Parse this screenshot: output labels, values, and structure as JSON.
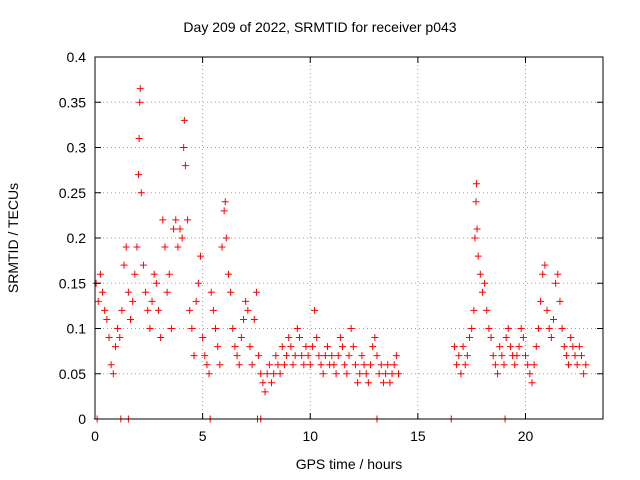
{
  "chart_data": {
    "type": "scatter",
    "title": "Day 209 of 2022, SRMTID for receiver p043",
    "xlabel": "GPS time / hours",
    "ylabel": "SRMTID / TECUs",
    "xlim": [
      0,
      23.6
    ],
    "ylim": [
      0,
      0.4
    ],
    "xticks": [
      0,
      5,
      10,
      15,
      20
    ],
    "xtick_labels": [
      "0",
      "5",
      "10",
      "15",
      "20"
    ],
    "yticks": [
      0,
      0.05,
      0.1,
      0.15,
      0.2,
      0.25,
      0.3,
      0.35,
      0.4
    ],
    "ytick_labels": [
      "0",
      "0.05",
      "0.1",
      "0.15",
      "0.2",
      "0.25",
      "0.3",
      "0.35",
      "0.4"
    ],
    "grid": true,
    "marker": "+",
    "color": "#ff0000",
    "series": [
      {
        "name": "SRMTID",
        "points": [
          [
            0.05,
            0.15
          ],
          [
            0.15,
            0.13
          ],
          [
            0.25,
            0.16
          ],
          [
            0.35,
            0.14
          ],
          [
            0.45,
            0.12
          ],
          [
            0.55,
            0.11
          ],
          [
            0.65,
            0.09
          ],
          [
            0.75,
            0.06
          ],
          [
            0.85,
            0.05
          ],
          [
            0.95,
            0.08
          ],
          [
            1.05,
            0.1
          ],
          [
            1.15,
            0.09
          ],
          [
            1.25,
            0.12
          ],
          [
            1.35,
            0.17
          ],
          [
            1.45,
            0.19
          ],
          [
            1.55,
            0.14
          ],
          [
            1.65,
            0.11
          ],
          [
            1.75,
            0.13
          ],
          [
            1.85,
            0.16
          ],
          [
            1.95,
            0.19
          ],
          [
            2.02,
            0.27
          ],
          [
            2.05,
            0.31
          ],
          [
            2.08,
            0.35
          ],
          [
            2.1,
            0.365
          ],
          [
            2.15,
            0.25
          ],
          [
            2.25,
            0.17
          ],
          [
            2.35,
            0.14
          ],
          [
            2.45,
            0.12
          ],
          [
            2.55,
            0.1
          ],
          [
            2.65,
            0.13
          ],
          [
            2.75,
            0.16
          ],
          [
            2.85,
            0.15
          ],
          [
            2.95,
            0.12
          ],
          [
            3.05,
            0.09
          ],
          [
            3.15,
            0.22
          ],
          [
            3.25,
            0.19
          ],
          [
            3.35,
            0.14
          ],
          [
            3.45,
            0.16
          ],
          [
            3.55,
            0.1
          ],
          [
            3.65,
            0.21
          ],
          [
            3.75,
            0.22
          ],
          [
            3.85,
            0.19
          ],
          [
            3.95,
            0.21
          ],
          [
            4.05,
            0.2
          ],
          [
            4.12,
            0.3
          ],
          [
            4.15,
            0.33
          ],
          [
            4.2,
            0.28
          ],
          [
            4.3,
            0.22
          ],
          [
            4.4,
            0.12
          ],
          [
            4.5,
            0.1
          ],
          [
            4.6,
            0.07
          ],
          [
            4.7,
            0.13
          ],
          [
            4.8,
            0.15
          ],
          [
            4.9,
            0.18
          ],
          [
            5.0,
            0.09
          ],
          [
            5.1,
            0.07
          ],
          [
            5.2,
            0.06
          ],
          [
            5.3,
            0.05
          ],
          [
            5.4,
            0.14
          ],
          [
            5.5,
            0.12
          ],
          [
            5.6,
            0.1
          ],
          [
            5.7,
            0.08
          ],
          [
            5.8,
            0.06
          ],
          [
            5.9,
            0.19
          ],
          [
            6.0,
            0.23
          ],
          [
            6.05,
            0.24
          ],
          [
            6.1,
            0.2
          ],
          [
            6.2,
            0.16
          ],
          [
            6.3,
            0.14
          ],
          [
            6.4,
            0.1
          ],
          [
            6.5,
            0.08
          ],
          [
            6.6,
            0.07
          ],
          [
            6.7,
            0.06
          ],
          [
            6.8,
            0.09
          ],
          [
            6.9,
            0.11
          ],
          [
            7.0,
            0.13
          ],
          [
            7.1,
            0.12
          ],
          [
            7.2,
            0.08
          ],
          [
            7.3,
            0.06
          ],
          [
            7.4,
            0.11
          ],
          [
            7.5,
            0.14
          ],
          [
            7.6,
            0.07
          ],
          [
            7.7,
            0.05
          ],
          [
            7.8,
            0.04
          ],
          [
            7.9,
            0.03
          ],
          [
            8.0,
            0.05
          ],
          [
            8.1,
            0.06
          ],
          [
            8.2,
            0.04
          ],
          [
            8.3,
            0.05
          ],
          [
            8.4,
            0.07
          ],
          [
            8.5,
            0.06
          ],
          [
            8.6,
            0.05
          ],
          [
            8.7,
            0.08
          ],
          [
            8.8,
            0.06
          ],
          [
            8.9,
            0.07
          ],
          [
            9.0,
            0.09
          ],
          [
            9.1,
            0.08
          ],
          [
            9.2,
            0.06
          ],
          [
            9.3,
            0.07
          ],
          [
            9.4,
            0.1
          ],
          [
            9.5,
            0.09
          ],
          [
            9.6,
            0.07
          ],
          [
            9.7,
            0.06
          ],
          [
            9.8,
            0.08
          ],
          [
            9.9,
            0.07
          ],
          [
            10.0,
            0.06
          ],
          [
            10.1,
            0.08
          ],
          [
            10.2,
            0.12
          ],
          [
            10.3,
            0.09
          ],
          [
            10.4,
            0.07
          ],
          [
            10.5,
            0.06
          ],
          [
            10.6,
            0.05
          ],
          [
            10.7,
            0.07
          ],
          [
            10.8,
            0.08
          ],
          [
            10.9,
            0.06
          ],
          [
            11.0,
            0.07
          ],
          [
            11.1,
            0.06
          ],
          [
            11.2,
            0.05
          ],
          [
            11.3,
            0.07
          ],
          [
            11.4,
            0.09
          ],
          [
            11.5,
            0.08
          ],
          [
            11.6,
            0.06
          ],
          [
            11.7,
            0.05
          ],
          [
            11.8,
            0.07
          ],
          [
            11.9,
            0.1
          ],
          [
            12.0,
            0.08
          ],
          [
            12.1,
            0.06
          ],
          [
            12.2,
            0.04
          ],
          [
            12.3,
            0.05
          ],
          [
            12.4,
            0.07
          ],
          [
            12.5,
            0.06
          ],
          [
            12.6,
            0.05
          ],
          [
            12.7,
            0.04
          ],
          [
            12.8,
            0.06
          ],
          [
            12.9,
            0.08
          ],
          [
            13.0,
            0.09
          ],
          [
            13.1,
            0.07
          ],
          [
            13.2,
            0.05
          ],
          [
            13.3,
            0.06
          ],
          [
            13.4,
            0.04
          ],
          [
            13.5,
            0.05
          ],
          [
            13.6,
            0.06
          ],
          [
            13.7,
            0.04
          ],
          [
            13.8,
            0.05
          ],
          [
            13.9,
            0.06
          ],
          [
            14.0,
            0.07
          ],
          [
            14.1,
            0.05
          ],
          [
            16.7,
            0.08
          ],
          [
            16.8,
            0.06
          ],
          [
            16.9,
            0.07
          ],
          [
            17.0,
            0.05
          ],
          [
            17.1,
            0.08
          ],
          [
            17.2,
            0.06
          ],
          [
            17.3,
            0.07
          ],
          [
            17.4,
            0.09
          ],
          [
            17.5,
            0.1
          ],
          [
            17.6,
            0.12
          ],
          [
            17.65,
            0.2
          ],
          [
            17.7,
            0.24
          ],
          [
            17.72,
            0.26
          ],
          [
            17.75,
            0.21
          ],
          [
            17.8,
            0.18
          ],
          [
            17.9,
            0.16
          ],
          [
            18.0,
            0.14
          ],
          [
            18.1,
            0.15
          ],
          [
            18.2,
            0.12
          ],
          [
            18.3,
            0.1
          ],
          [
            18.4,
            0.09
          ],
          [
            18.5,
            0.07
          ],
          [
            18.6,
            0.06
          ],
          [
            18.7,
            0.05
          ],
          [
            18.8,
            0.08
          ],
          [
            18.9,
            0.07
          ],
          [
            19.0,
            0.06
          ],
          [
            19.1,
            0.09
          ],
          [
            19.2,
            0.1
          ],
          [
            19.3,
            0.08
          ],
          [
            19.4,
            0.07
          ],
          [
            19.5,
            0.06
          ],
          [
            19.6,
            0.07
          ],
          [
            19.7,
            0.08
          ],
          [
            19.8,
            0.1
          ],
          [
            19.9,
            0.09
          ],
          [
            20.0,
            0.07
          ],
          [
            20.1,
            0.06
          ],
          [
            20.2,
            0.05
          ],
          [
            20.3,
            0.04
          ],
          [
            20.4,
            0.06
          ],
          [
            20.5,
            0.08
          ],
          [
            20.6,
            0.1
          ],
          [
            20.7,
            0.13
          ],
          [
            20.8,
            0.16
          ],
          [
            20.9,
            0.17
          ],
          [
            21.0,
            0.12
          ],
          [
            21.1,
            0.1
          ],
          [
            21.2,
            0.09
          ],
          [
            21.3,
            0.11
          ],
          [
            21.4,
            0.15
          ],
          [
            21.5,
            0.16
          ],
          [
            21.6,
            0.13
          ],
          [
            21.7,
            0.1
          ],
          [
            21.8,
            0.08
          ],
          [
            21.9,
            0.07
          ],
          [
            22.0,
            0.06
          ],
          [
            22.1,
            0.09
          ],
          [
            22.2,
            0.08
          ],
          [
            22.3,
            0.07
          ],
          [
            22.4,
            0.06
          ],
          [
            22.5,
            0.08
          ],
          [
            22.6,
            0.07
          ],
          [
            22.7,
            0.05
          ],
          [
            22.8,
            0.06
          ],
          [
            0.1,
            0.0
          ],
          [
            1.2,
            0.0
          ],
          [
            1.55,
            0.0
          ],
          [
            5.35,
            0.0
          ],
          [
            7.55,
            0.0
          ],
          [
            7.7,
            0.0
          ],
          [
            13.1,
            0.0
          ],
          [
            16.55,
            0.0
          ],
          [
            19.05,
            0.0
          ]
        ]
      }
    ]
  }
}
